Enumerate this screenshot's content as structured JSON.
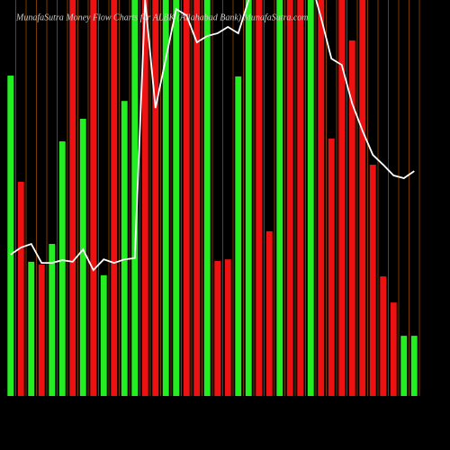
{
  "chart_data": {
    "type": "bar",
    "title": "MunafaSutra  Money Flow  Charts for ALBK  (Allahabad Bank) MunafaSutra.com",
    "values": [
      80.9,
      54.1,
      33.9,
      33.2,
      38.4,
      64.3,
      100,
      70,
      100,
      30.5,
      100,
      74.5,
      100,
      100,
      100,
      100,
      100,
      100,
      100,
      100,
      34.1,
      34.5,
      80.7,
      100,
      100,
      41.6,
      100,
      100,
      100,
      100,
      100,
      65,
      100,
      89.8,
      100,
      58.4,
      30.2,
      23.6,
      15.2,
      15.2
    ],
    "colors": [
      "#22ee22",
      "#ee1111",
      "#22ee22",
      "#ee1111",
      "#22ee22",
      "#22ee22",
      "#ee1111",
      "#22ee22",
      "#ee1111",
      "#22ee22",
      "#ee1111",
      "#22ee22",
      "#22ee22",
      "#ee1111",
      "#ee1111",
      "#22ee22",
      "#22ee22",
      "#ee1111",
      "#ee1111",
      "#22ee22",
      "#ee1111",
      "#ee1111",
      "#22ee22",
      "#22ee22",
      "#ee1111",
      "#ee1111",
      "#22ee22",
      "#ee1111",
      "#ee1111",
      "#22ee22",
      "#ee1111",
      "#ee1111",
      "#ee1111",
      "#ee1111",
      "#ee1111",
      "#ee1111",
      "#ee1111",
      "#ee1111",
      "#22ee22",
      "#22ee22"
    ],
    "line": {
      "color": "#ffffff",
      "values": [
        35.7,
        37.5,
        38.4,
        33.6,
        33.6,
        34.3,
        33.9,
        37,
        31.8,
        34.5,
        33.6,
        34.5,
        34.8,
        100,
        72.7,
        85.2,
        97.7,
        96.1,
        89.3,
        90.9,
        91.6,
        93.2,
        91.6,
        100,
        105,
        105,
        105,
        105,
        105,
        105,
        95.5,
        85.2,
        83.6,
        73.9,
        67,
        60.9,
        58.4,
        55.7,
        55,
        56.8
      ]
    },
    "ylim": [
      0,
      100
    ],
    "grid_color": "#7a3a00"
  }
}
